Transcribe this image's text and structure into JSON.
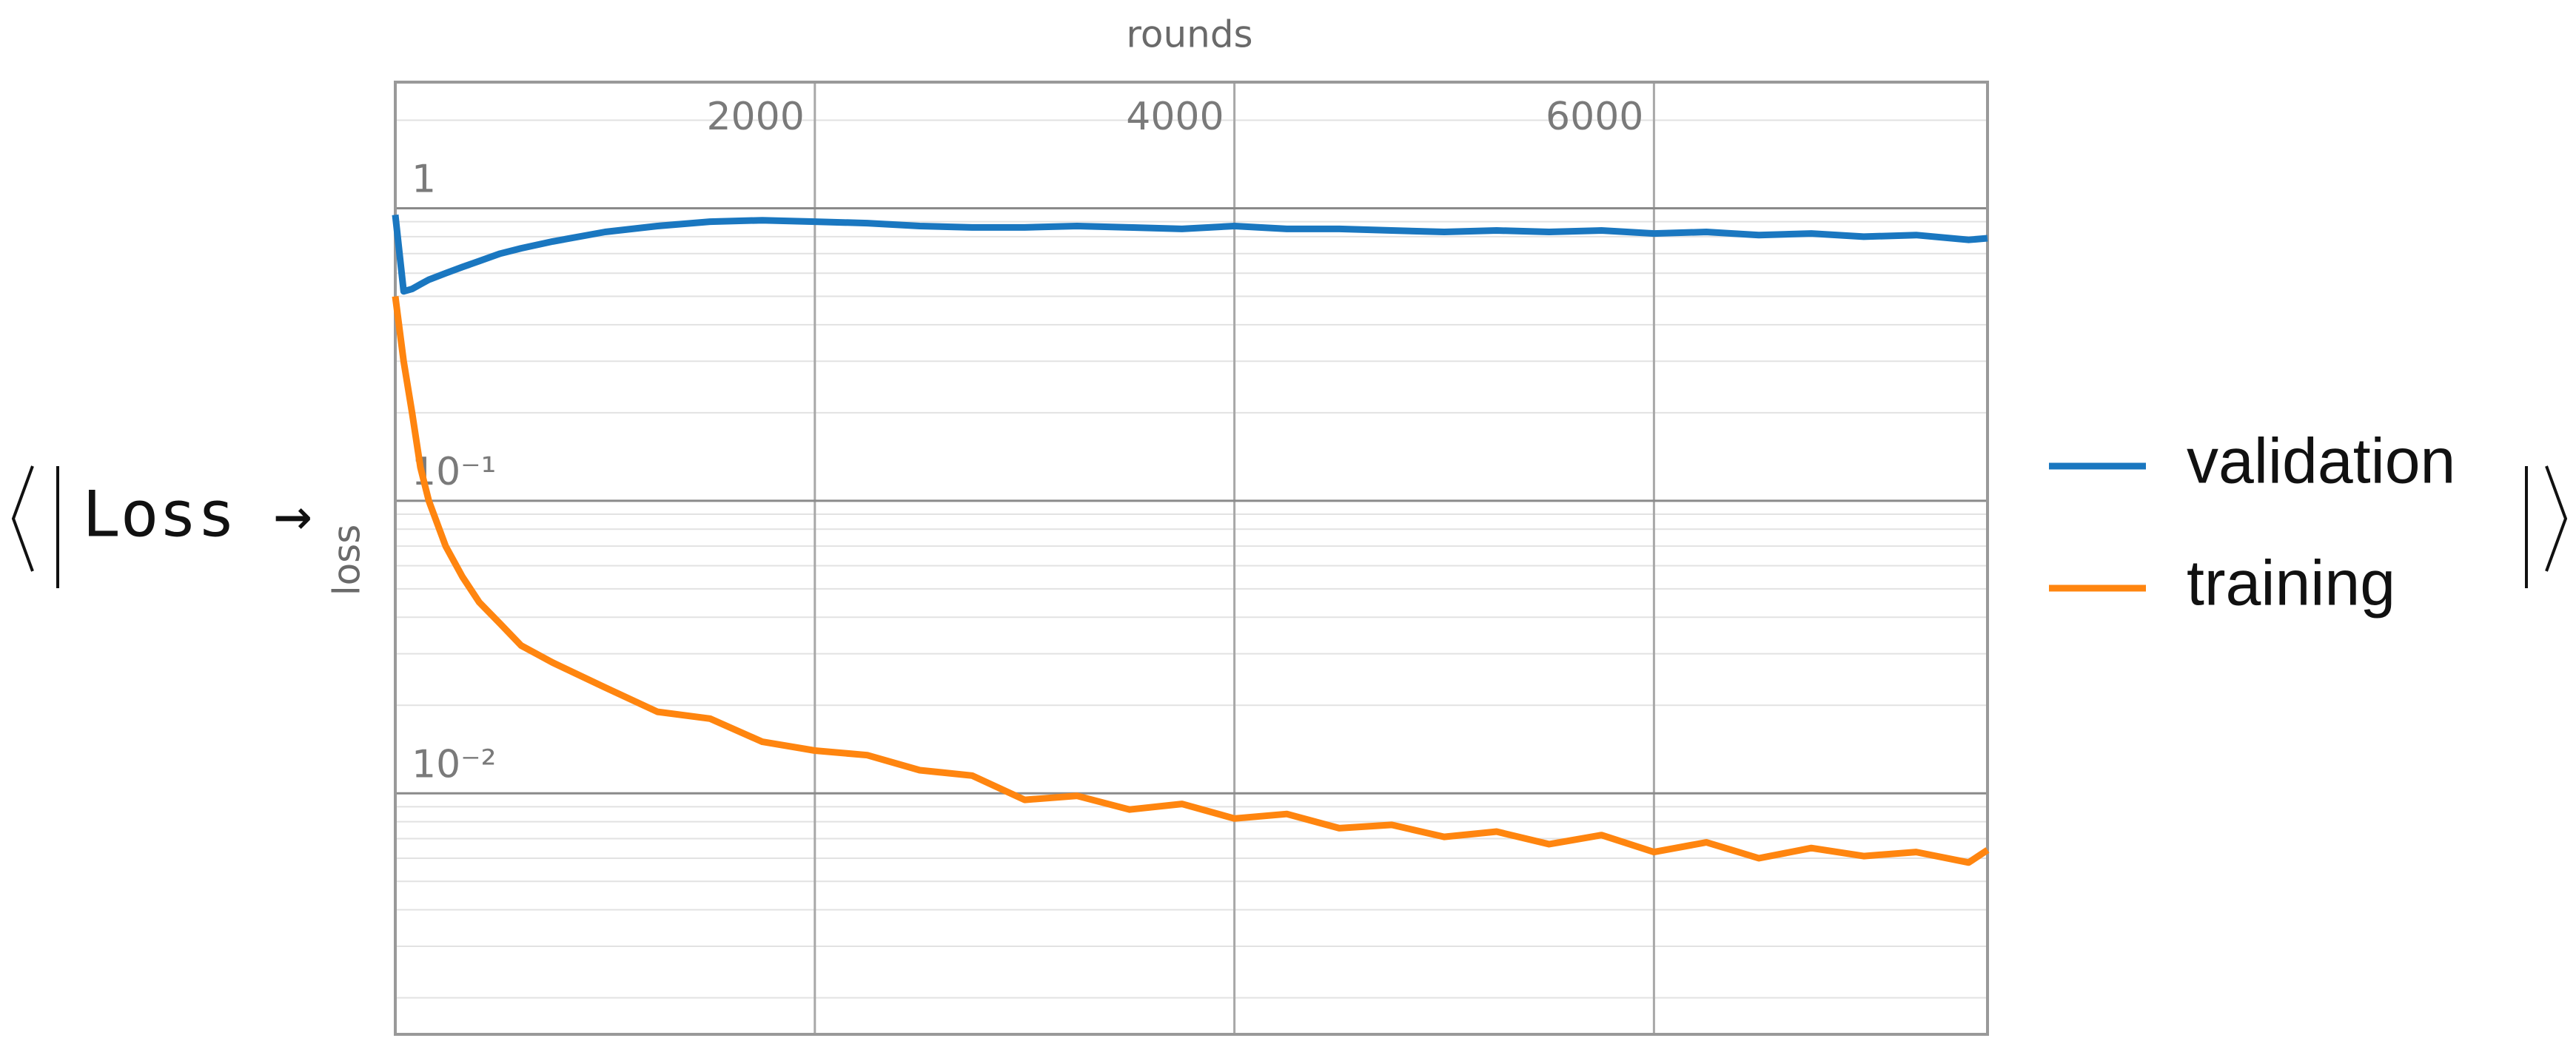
{
  "chart_data": {
    "type": "line",
    "head": "Loss →",
    "xlabel": "rounds",
    "ylabel": "loss",
    "x": [
      0,
      40,
      80,
      120,
      160,
      240,
      320,
      400,
      500,
      600,
      750,
      1000,
      1250,
      1500,
      1750,
      2000,
      2250,
      2500,
      2750,
      3000,
      3250,
      3500,
      3750,
      4000,
      4250,
      4500,
      4750,
      5000,
      5250,
      5500,
      5750,
      6000,
      6250,
      6500,
      6750,
      7000,
      7250,
      7500,
      7590
    ],
    "series": [
      {
        "name": "validation",
        "color": "#1a77c0",
        "values": [
          0.95,
          0.52,
          0.53,
          0.55,
          0.57,
          0.6,
          0.63,
          0.66,
          0.7,
          0.73,
          0.77,
          0.83,
          0.87,
          0.9,
          0.91,
          0.9,
          0.89,
          0.87,
          0.86,
          0.86,
          0.87,
          0.86,
          0.85,
          0.87,
          0.85,
          0.85,
          0.84,
          0.83,
          0.84,
          0.83,
          0.84,
          0.82,
          0.83,
          0.81,
          0.82,
          0.8,
          0.81,
          0.78,
          0.79
        ]
      },
      {
        "name": "training",
        "color": "#ff850f",
        "values": [
          0.5,
          0.3,
          0.2,
          0.13,
          0.1,
          0.07,
          0.055,
          0.045,
          0.038,
          0.032,
          0.028,
          0.023,
          0.019,
          0.018,
          0.015,
          0.014,
          0.0135,
          0.012,
          0.0115,
          0.0095,
          0.0098,
          0.0088,
          0.0092,
          0.0082,
          0.0085,
          0.0076,
          0.0078,
          0.0071,
          0.0074,
          0.0067,
          0.0072,
          0.0063,
          0.0068,
          0.006,
          0.0065,
          0.0061,
          0.0063,
          0.0058,
          0.0064
        ]
      }
    ],
    "xlim": [
      0,
      7590
    ],
    "xticks": [
      2000,
      4000,
      6000
    ],
    "ylim": [
      0.0015,
      2.7
    ],
    "ylog": true,
    "yticks": [
      1,
      {
        "value": 0.1,
        "label": "10⁻¹"
      },
      {
        "value": 0.01,
        "label": "10⁻²"
      }
    ],
    "grid": true,
    "legend": "right"
  }
}
